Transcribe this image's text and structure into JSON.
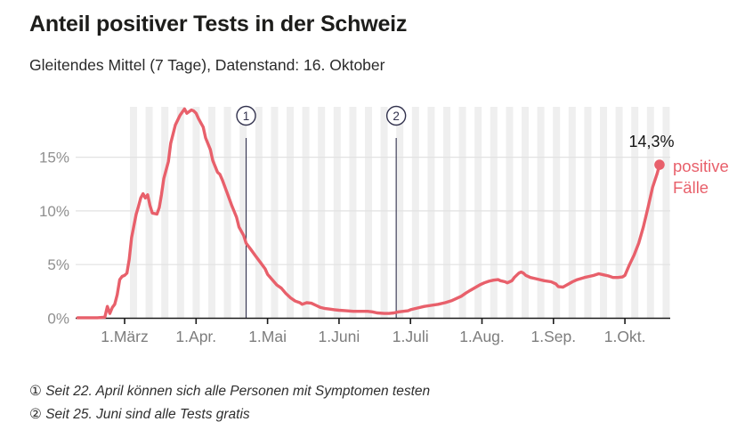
{
  "header": {
    "title": "Anteil positiver Tests in der Schweiz",
    "subtitle": "Gleitendes Mittel (7 Tage), Datenstand: 16. Oktober"
  },
  "colors": {
    "line": "#e8606b",
    "annotation": "#32324e",
    "grid": "#e2e2e2",
    "stripe": "#efefef",
    "axis": "#1a1a1a",
    "tick_label": "#8f8f8f",
    "value_label": "#141414"
  },
  "chart_data": {
    "type": "line",
    "title": "Anteil positiver Tests in der Schweiz",
    "subtitle": "Gleitendes Mittel (7 Tage), Datenstand: 16. Oktober",
    "unit": "%",
    "ylim": [
      0,
      19.8
    ],
    "ytick_values": [
      0,
      5,
      10,
      15
    ],
    "ytick_labels": [
      "0%",
      "5%",
      "10%",
      "15%"
    ],
    "xtick_labels": [
      "1.März",
      "1.Apr.",
      "1.Mai",
      "1.Juni",
      "1.Juli",
      "1.Aug.",
      "1.Sep.",
      "1.Okt."
    ],
    "grid": true,
    "weekly_stripes": true,
    "series": [
      {
        "name": "positive Fälle",
        "points": [
          [
            "02-11",
            0.05
          ],
          [
            "02-15",
            0.05
          ],
          [
            "02-19",
            0.05
          ],
          [
            "02-22",
            0.1
          ],
          [
            "02-23",
            1.1
          ],
          [
            "02-24",
            0.45
          ],
          [
            "02-25",
            1.0
          ],
          [
            "02-26",
            1.3
          ],
          [
            "02-27",
            2.2
          ],
          [
            "02-28",
            3.6
          ],
          [
            "02-29",
            3.9
          ],
          [
            "03-01",
            4.0
          ],
          [
            "03-02",
            4.2
          ],
          [
            "03-03",
            5.5
          ],
          [
            "03-04",
            7.5
          ],
          [
            "03-06",
            9.7
          ],
          [
            "03-07",
            10.4
          ],
          [
            "03-08",
            11.2
          ],
          [
            "03-09",
            11.6
          ],
          [
            "03-10",
            11.2
          ],
          [
            "03-11",
            11.5
          ],
          [
            "03-12",
            10.5
          ],
          [
            "03-13",
            9.8
          ],
          [
            "03-15",
            9.7
          ],
          [
            "03-16",
            10.3
          ],
          [
            "03-17",
            11.5
          ],
          [
            "03-18",
            13.0
          ],
          [
            "03-20",
            14.6
          ],
          [
            "03-21",
            16.3
          ],
          [
            "03-23",
            18.0
          ],
          [
            "03-25",
            18.9
          ],
          [
            "03-26",
            19.2
          ],
          [
            "03-27",
            19.5
          ],
          [
            "03-28",
            19.1
          ],
          [
            "03-30",
            19.4
          ],
          [
            "03-31",
            19.3
          ],
          [
            "04-01",
            19.1
          ],
          [
            "04-02",
            18.6
          ],
          [
            "04-04",
            17.8
          ],
          [
            "04-05",
            16.8
          ],
          [
            "04-07",
            15.7
          ],
          [
            "04-08",
            14.7
          ],
          [
            "04-10",
            13.6
          ],
          [
            "04-11",
            13.4
          ],
          [
            "04-12",
            12.9
          ],
          [
            "04-14",
            11.7
          ],
          [
            "04-16",
            10.5
          ],
          [
            "04-18",
            9.4
          ],
          [
            "04-19",
            8.5
          ],
          [
            "04-21",
            7.7
          ],
          [
            "04-22",
            7.0
          ],
          [
            "04-24",
            6.4
          ],
          [
            "04-26",
            5.8
          ],
          [
            "04-28",
            5.2
          ],
          [
            "04-30",
            4.6
          ],
          [
            "05-01",
            4.1
          ],
          [
            "05-03",
            3.6
          ],
          [
            "05-05",
            3.1
          ],
          [
            "05-07",
            2.8
          ],
          [
            "05-09",
            2.3
          ],
          [
            "05-11",
            1.9
          ],
          [
            "05-13",
            1.6
          ],
          [
            "05-15",
            1.45
          ],
          [
            "05-16",
            1.3
          ],
          [
            "05-18",
            1.45
          ],
          [
            "05-20",
            1.4
          ],
          [
            "05-22",
            1.2
          ],
          [
            "05-24",
            1.0
          ],
          [
            "05-26",
            0.9
          ],
          [
            "05-28",
            0.85
          ],
          [
            "05-30",
            0.8
          ],
          [
            "06-01",
            0.75
          ],
          [
            "06-04",
            0.7
          ],
          [
            "06-07",
            0.65
          ],
          [
            "06-10",
            0.65
          ],
          [
            "06-13",
            0.65
          ],
          [
            "06-15",
            0.6
          ],
          [
            "06-17",
            0.5
          ],
          [
            "06-20",
            0.45
          ],
          [
            "06-22",
            0.45
          ],
          [
            "06-24",
            0.5
          ],
          [
            "06-26",
            0.6
          ],
          [
            "06-28",
            0.65
          ],
          [
            "06-30",
            0.7
          ],
          [
            "07-01",
            0.8
          ],
          [
            "07-04",
            0.95
          ],
          [
            "07-07",
            1.1
          ],
          [
            "07-10",
            1.2
          ],
          [
            "07-13",
            1.3
          ],
          [
            "07-16",
            1.45
          ],
          [
            "07-19",
            1.65
          ],
          [
            "07-21",
            1.85
          ],
          [
            "07-23",
            2.05
          ],
          [
            "07-25",
            2.35
          ],
          [
            "07-27",
            2.6
          ],
          [
            "07-29",
            2.85
          ],
          [
            "07-31",
            3.1
          ],
          [
            "08-02",
            3.3
          ],
          [
            "08-04",
            3.45
          ],
          [
            "08-06",
            3.55
          ],
          [
            "08-08",
            3.6
          ],
          [
            "08-09",
            3.5
          ],
          [
            "08-11",
            3.4
          ],
          [
            "08-12",
            3.3
          ],
          [
            "08-14",
            3.5
          ],
          [
            "08-15",
            3.8
          ],
          [
            "08-17",
            4.2
          ],
          [
            "08-18",
            4.3
          ],
          [
            "08-19",
            4.2
          ],
          [
            "08-20",
            4.0
          ],
          [
            "08-22",
            3.8
          ],
          [
            "08-24",
            3.7
          ],
          [
            "08-26",
            3.6
          ],
          [
            "08-28",
            3.5
          ],
          [
            "08-31",
            3.4
          ],
          [
            "09-02",
            3.2
          ],
          [
            "09-03",
            2.95
          ],
          [
            "09-05",
            2.9
          ],
          [
            "09-07",
            3.15
          ],
          [
            "09-09",
            3.4
          ],
          [
            "09-11",
            3.6
          ],
          [
            "09-14",
            3.8
          ],
          [
            "09-16",
            3.9
          ],
          [
            "09-18",
            4.0
          ],
          [
            "09-20",
            4.15
          ],
          [
            "09-22",
            4.05
          ],
          [
            "09-24",
            3.95
          ],
          [
            "09-26",
            3.8
          ],
          [
            "09-28",
            3.8
          ],
          [
            "09-30",
            3.85
          ],
          [
            "10-01",
            4.0
          ],
          [
            "10-02",
            4.5
          ],
          [
            "10-03",
            5.0
          ],
          [
            "10-05",
            5.9
          ],
          [
            "10-07",
            7.0
          ],
          [
            "10-09",
            8.5
          ],
          [
            "10-11",
            10.3
          ],
          [
            "10-13",
            12.2
          ],
          [
            "10-15",
            13.5
          ],
          [
            "10-16",
            14.3
          ]
        ]
      }
    ],
    "end_point": {
      "date": "10-16",
      "value": 14.3,
      "value_label": "14,3%",
      "series_label": "positive\nFälle"
    },
    "annotations": [
      {
        "symbol": "1",
        "date": "04-22",
        "text": "Seit 22. April können sich alle Personen mit Symptomen testen"
      },
      {
        "symbol": "2",
        "date": "06-25",
        "text": "Seit 25. Juni sind alle Tests gratis"
      }
    ]
  },
  "footnotes": [
    "① Seit 22. April können sich alle Personen mit Symptomen testen",
    "② Seit 25. Juni sind alle Tests gratis"
  ]
}
